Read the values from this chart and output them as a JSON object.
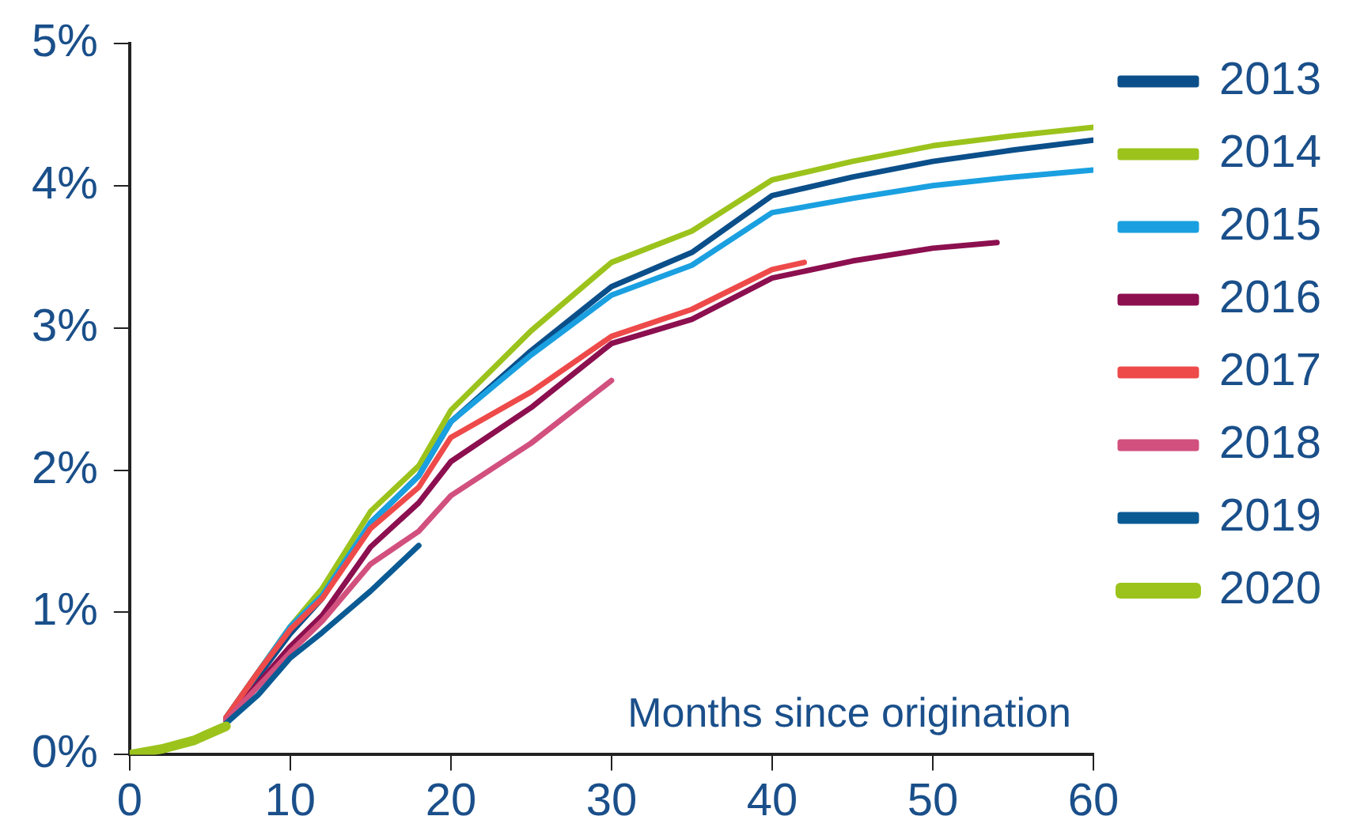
{
  "chart_data": {
    "type": "line",
    "xlabel": "Months since origination",
    "xlim": [
      0,
      60
    ],
    "xticks": [
      0,
      10,
      20,
      30,
      40,
      50,
      60
    ],
    "ylim": [
      0,
      5
    ],
    "yticks": [
      {
        "value": 0,
        "label": "0%"
      },
      {
        "value": 1,
        "label": "1%"
      },
      {
        "value": 2,
        "label": "2%"
      },
      {
        "value": 3,
        "label": "3%"
      },
      {
        "value": 4,
        "label": "4%"
      },
      {
        "value": 5,
        "label": "5%"
      }
    ],
    "grid": false,
    "legend": "right",
    "marker": "none",
    "line_style": "solid",
    "series": [
      {
        "name": "2013",
        "color": "#0b4f8a",
        "x": [
          6,
          8,
          10,
          12,
          15,
          18,
          20,
          25,
          30,
          35,
          40,
          45,
          50,
          55,
          60
        ],
        "values": [
          0.25,
          0.55,
          0.85,
          1.1,
          1.63,
          1.96,
          2.34,
          2.84,
          3.29,
          3.53,
          3.93,
          4.06,
          4.17,
          4.25,
          4.32
        ]
      },
      {
        "name": "2014",
        "color": "#9bc31c",
        "x": [
          6,
          8,
          10,
          12,
          15,
          18,
          20,
          25,
          30,
          35,
          40,
          45,
          50,
          55,
          60
        ],
        "values": [
          0.26,
          0.58,
          0.9,
          1.17,
          1.71,
          2.03,
          2.42,
          2.98,
          3.46,
          3.68,
          4.04,
          4.17,
          4.28,
          4.35,
          4.41
        ]
      },
      {
        "name": "2015",
        "color": "#1aa0e0",
        "x": [
          6,
          8,
          10,
          12,
          15,
          18,
          20,
          25,
          30,
          35,
          40,
          45,
          50,
          55,
          60
        ],
        "values": [
          0.26,
          0.58,
          0.9,
          1.12,
          1.63,
          1.96,
          2.34,
          2.81,
          3.23,
          3.44,
          3.81,
          3.91,
          4.0,
          4.06,
          4.11
        ]
      },
      {
        "name": "2016",
        "color": "#8c0f4f",
        "x": [
          6,
          8,
          10,
          12,
          15,
          18,
          20,
          25,
          30,
          35,
          40,
          45,
          50,
          54
        ],
        "values": [
          0.24,
          0.5,
          0.76,
          0.98,
          1.46,
          1.77,
          2.06,
          2.44,
          2.89,
          3.06,
          3.35,
          3.47,
          3.56,
          3.6
        ]
      },
      {
        "name": "2017",
        "color": "#ee4a4a",
        "x": [
          6,
          8,
          10,
          12,
          15,
          18,
          20,
          25,
          30,
          35,
          40,
          42
        ],
        "values": [
          0.26,
          0.58,
          0.88,
          1.1,
          1.59,
          1.88,
          2.23,
          2.55,
          2.94,
          3.13,
          3.41,
          3.46
        ]
      },
      {
        "name": "2018",
        "color": "#d2507e",
        "x": [
          6,
          8,
          10,
          12,
          15,
          18,
          20,
          25,
          30
        ],
        "values": [
          0.24,
          0.48,
          0.72,
          0.94,
          1.34,
          1.57,
          1.82,
          2.19,
          2.63
        ]
      },
      {
        "name": "2019",
        "color": "#0a5a94",
        "x": [
          6,
          8,
          10,
          12,
          15,
          18
        ],
        "values": [
          0.22,
          0.42,
          0.68,
          0.86,
          1.15,
          1.47
        ]
      },
      {
        "name": "2020",
        "color": "#9bc31c",
        "x": [
          0,
          2,
          4,
          6
        ],
        "values": [
          0,
          0.04,
          0.1,
          0.2
        ]
      }
    ]
  }
}
